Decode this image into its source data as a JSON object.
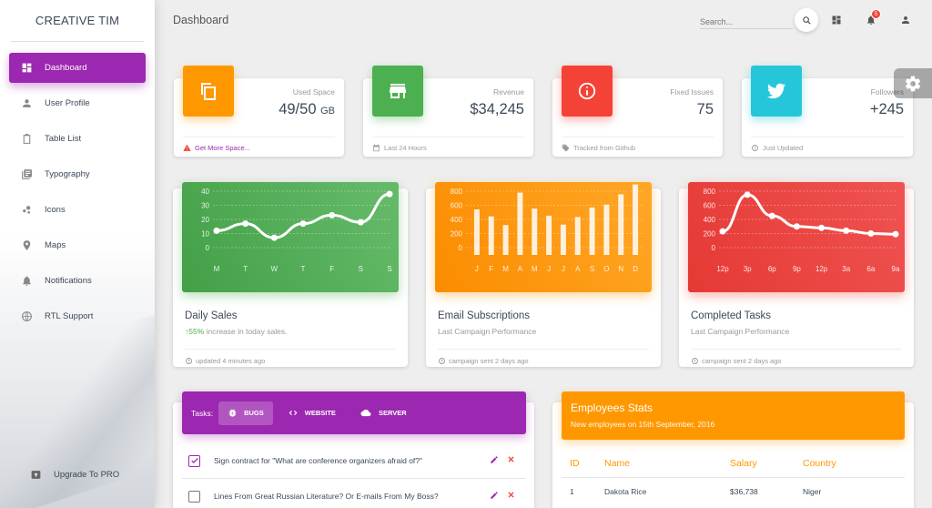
{
  "brand": "CREATIVE TIM",
  "topbar": {
    "title": "Dashboard",
    "search_placeholder": "Search...",
    "notification_count": "5"
  },
  "sidebar": {
    "items": [
      {
        "label": "Dashboard",
        "icon": "dashboard-icon"
      },
      {
        "label": "User Profile",
        "icon": "person-icon"
      },
      {
        "label": "Table List",
        "icon": "clipboard-icon"
      },
      {
        "label": "Typography",
        "icon": "library-books-icon"
      },
      {
        "label": "Icons",
        "icon": "bubble-chart-icon"
      },
      {
        "label": "Maps",
        "icon": "location-icon"
      },
      {
        "label": "Notifications",
        "icon": "bell-icon"
      },
      {
        "label": "RTL Support",
        "icon": "language-icon"
      }
    ],
    "upgrade": "Upgrade To PRO"
  },
  "stats": [
    {
      "category": "Used Space",
      "value": "49/50",
      "unit": "GB",
      "footer": "Get More Space...",
      "color": "#ff9800",
      "icon": "content-copy-icon"
    },
    {
      "category": "Revenue",
      "value": "$34,245",
      "unit": "",
      "footer": "Last 24 Hours",
      "color": "#4caf50",
      "icon": "store-icon"
    },
    {
      "category": "Fixed Issues",
      "value": "75",
      "unit": "",
      "footer": "Tracked from Github",
      "color": "#f44336",
      "icon": "info-icon"
    },
    {
      "category": "Followers",
      "value": "+245",
      "unit": "",
      "footer": "Just Updated",
      "color": "#26c6da",
      "icon": "twitter-icon"
    }
  ],
  "chart_data": [
    {
      "type": "line",
      "title": "Daily Sales",
      "categories": [
        "M",
        "T",
        "W",
        "T",
        "F",
        "S",
        "S"
      ],
      "values": [
        12,
        17,
        7,
        17,
        23,
        18,
        38
      ],
      "ylim": [
        0,
        40
      ],
      "yticks": [
        "0",
        "10",
        "20",
        "30",
        "40"
      ],
      "color": "#4caf50",
      "subtitle_highlight": "55%",
      "subtitle_rest": " increase in today sales.",
      "footer": "updated 4 minutes ago"
    },
    {
      "type": "bar",
      "title": "Email Subscriptions",
      "categories": [
        "J",
        "F",
        "M",
        "A",
        "M",
        "J",
        "J",
        "A",
        "S",
        "O",
        "N",
        "D"
      ],
      "values": [
        542,
        443,
        320,
        780,
        553,
        453,
        326,
        434,
        568,
        610,
        756,
        895
      ],
      "ylim": [
        0,
        800
      ],
      "yticks": [
        "0",
        "200",
        "400",
        "600",
        "800"
      ],
      "color": "#ff9800",
      "subtitle": "Last Campaign Performance",
      "footer": "campaign sent 2 days ago"
    },
    {
      "type": "line",
      "title": "Completed Tasks",
      "categories": [
        "12p",
        "3p",
        "6p",
        "9p",
        "12p",
        "3a",
        "6a",
        "9a"
      ],
      "values": [
        230,
        750,
        450,
        300,
        280,
        240,
        200,
        190
      ],
      "ylim": [
        0,
        800
      ],
      "yticks": [
        "0",
        "200",
        "400",
        "600",
        "800"
      ],
      "color": "#f44336",
      "subtitle": "Last Campaign Performance",
      "footer": "campaign sent 2 days ago"
    }
  ],
  "tasks": {
    "label": "Tasks:",
    "tabs": [
      {
        "label": "BUGS",
        "icon": "bug-icon"
      },
      {
        "label": "WEBSITE",
        "icon": "code-icon"
      },
      {
        "label": "SERVER",
        "icon": "cloud-icon"
      }
    ],
    "rows": [
      {
        "text": "Sign contract for \"What are conference organizers afraid of?\"",
        "checked": true
      },
      {
        "text": "Lines From Great Russian Literature? Or E-mails From My Boss?",
        "checked": false
      }
    ]
  },
  "employees": {
    "title": "Employees Stats",
    "subtitle": "New employees on 15th September, 2016",
    "columns": [
      "ID",
      "Name",
      "Salary",
      "Country"
    ],
    "rows": [
      [
        "1",
        "Dakota Rice",
        "$36,738",
        "Niger"
      ]
    ]
  }
}
